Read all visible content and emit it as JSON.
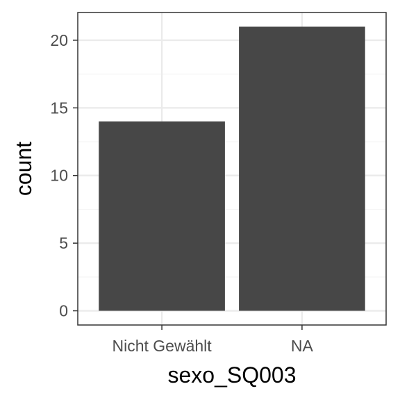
{
  "chart_data": {
    "type": "bar",
    "categories": [
      "Nicht Gewählt",
      "NA"
    ],
    "values": [
      14,
      21
    ],
    "xlabel": "sexo_SQ003",
    "ylabel": "count",
    "ylim": [
      -1.05,
      22.05
    ],
    "yticks": [
      0,
      5,
      10,
      15,
      20
    ],
    "grid": true,
    "colors": {
      "bar": "#474747",
      "panel_border": "#333333",
      "grid_major": "#ebebeb",
      "grid_minor": "#f5f5f5",
      "tick_mark": "#333333"
    }
  }
}
